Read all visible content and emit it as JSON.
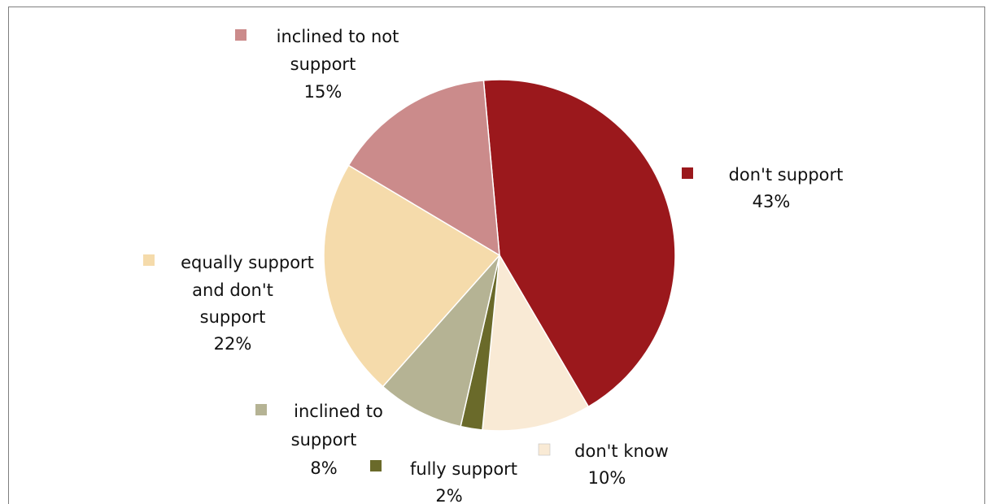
{
  "chart_data": {
    "type": "pie",
    "title": "",
    "slices": [
      {
        "label": "don't support",
        "value": 43,
        "percent_label": "43%",
        "color": "#9b181c"
      },
      {
        "label": "don't know",
        "value": 10,
        "percent_label": "10%",
        "color": "#f9ead5"
      },
      {
        "label": "fully support",
        "value": 2,
        "percent_label": "2%",
        "color": "#6a6a2a"
      },
      {
        "label": "inclined to support",
        "value": 8,
        "percent_label": "8%",
        "color": "#b5b394"
      },
      {
        "label": "equally support and don't support",
        "value": 22,
        "percent_label": "22%",
        "color": "#f5dbab"
      },
      {
        "label": "inclined to not support",
        "value": 15,
        "percent_label": "15%",
        "color": "#cb8b8b"
      }
    ],
    "slice_order": "clockwise from top",
    "legend": "none (data labels with color keys beside each slice)",
    "slice_border_color": "#ffffff"
  }
}
